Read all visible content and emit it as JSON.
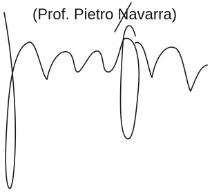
{
  "signatory": "(Prof. Pietro Navarra)"
}
